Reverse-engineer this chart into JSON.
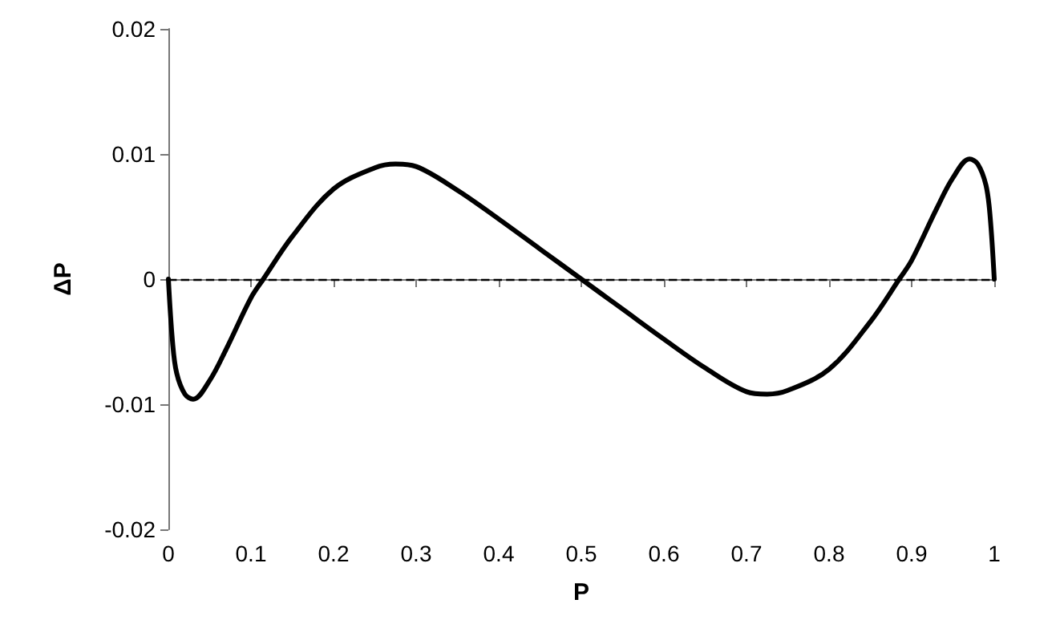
{
  "chart_data": {
    "type": "line",
    "xlabel": "P",
    "ylabel": "ΔP",
    "xlim": [
      0,
      1
    ],
    "xticks": [
      0,
      0.1,
      0.2,
      0.3,
      0.4,
      0.5,
      0.6,
      0.7,
      0.8,
      0.9,
      1
    ],
    "ylim": [
      -0.02,
      0.02
    ],
    "yticks": [
      -0.02,
      -0.01,
      0,
      0.01,
      0.02
    ],
    "marker": "none",
    "line_style": "solid",
    "series": [
      {
        "color": "#000000",
        "x": [
          0,
          0.005,
          0.01,
          0.02,
          0.03,
          0.05,
          0.07,
          0.1,
          0.115,
          0.15,
          0.2,
          0.25,
          0.275,
          0.3,
          0.35,
          0.4,
          0.45,
          0.5,
          0.55,
          0.6,
          0.65,
          0.7,
          0.725,
          0.75,
          0.8,
          0.85,
          0.885,
          0.9,
          0.93,
          0.95,
          0.97,
          0.98,
          0.99,
          0.995,
          1
        ],
        "values": [
          0,
          -0.005,
          -0.0075,
          -0.0092,
          -0.0096,
          -0.0081,
          -0.0056,
          -0.0015,
          0,
          0.0034,
          0.0072,
          0.0089,
          0.0092,
          0.009,
          0.0071,
          0.0048,
          0.0024,
          0,
          -0.0024,
          -0.0048,
          -0.0071,
          -0.009,
          -0.0092,
          -0.0089,
          -0.0072,
          -0.0034,
          0,
          0.0015,
          0.0056,
          0.0081,
          0.0096,
          0.0092,
          0.0075,
          0.005,
          0
        ]
      }
    ],
    "ref_lines": [
      {
        "axis": "y",
        "value": 0,
        "line_style": "dashed",
        "color": "#000000"
      }
    ]
  }
}
